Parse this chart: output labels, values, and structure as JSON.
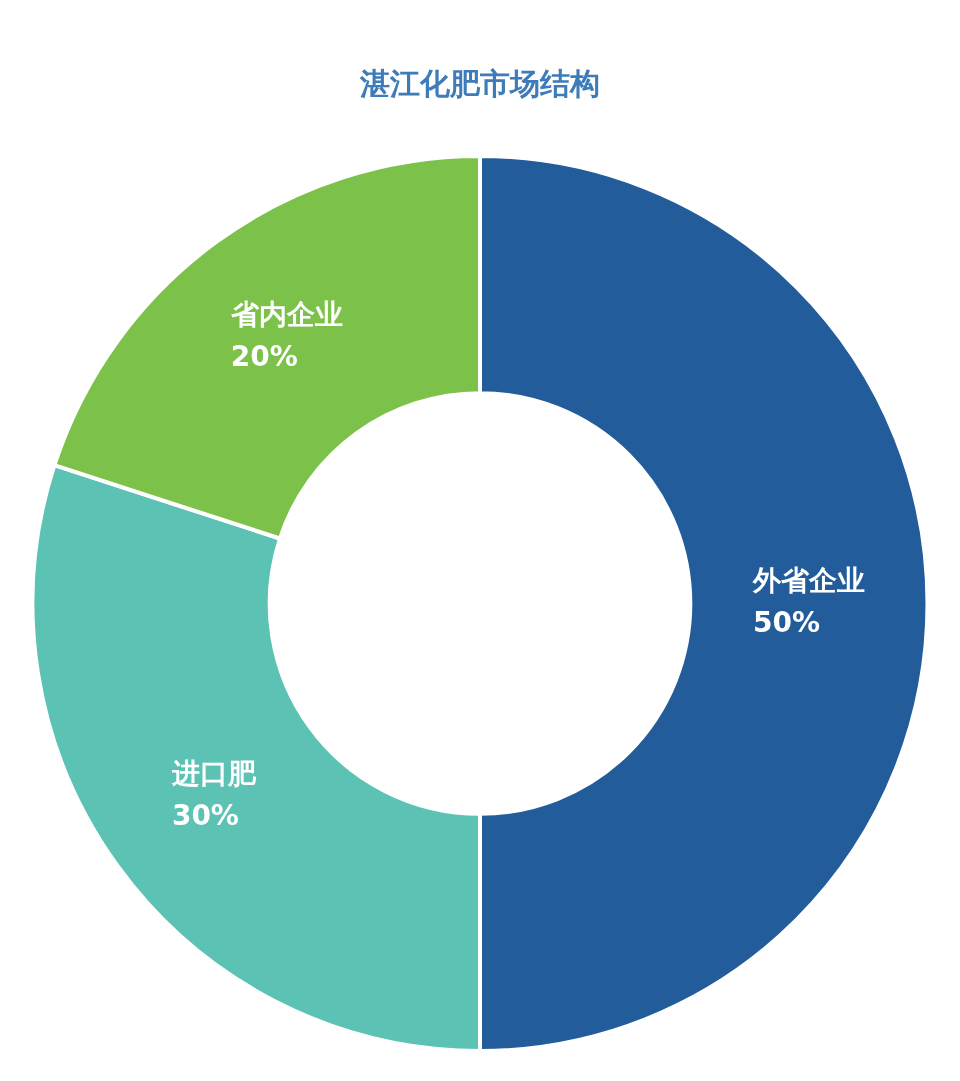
{
  "chart_data": {
    "type": "donut",
    "title": "湛江化肥市场结构",
    "categories": [
      "外省企业",
      "进口肥",
      "省内企业"
    ],
    "values": [
      50,
      30,
      20
    ],
    "colors": [
      "#235c9a",
      "#5cc2b4",
      "#7cc24a"
    ],
    "value_labels": [
      "50%",
      "30%",
      "20%"
    ]
  }
}
